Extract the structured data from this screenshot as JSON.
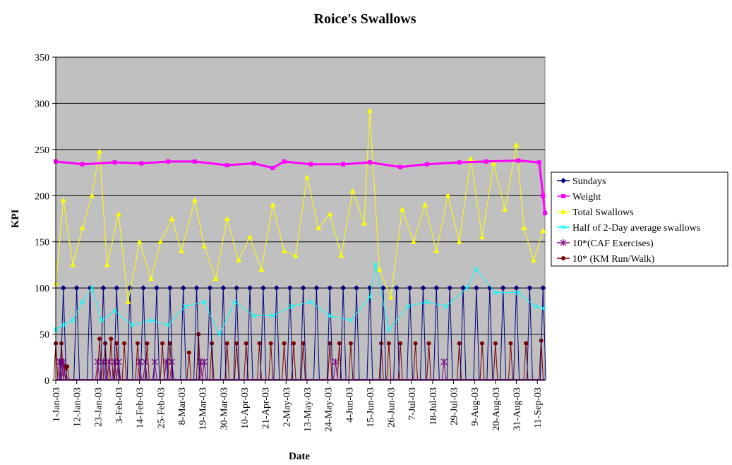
{
  "chart_data": {
    "type": "line",
    "title": "Roice's Swallows",
    "xlabel": "Date",
    "ylabel": "KPI",
    "ylim": [
      0,
      350
    ],
    "yticks": [
      0,
      50,
      100,
      150,
      200,
      250,
      300,
      350
    ],
    "x_start": "1-Jan-03",
    "x_end": "15-Sep-03",
    "xtick_labels": [
      "1-Jan-03",
      "12-Jan-03",
      "23-Jan-03",
      "3-Feb-03",
      "14-Feb-03",
      "25-Feb-03",
      "8-Mar-03",
      "19-Mar-03",
      "30-Mar-03",
      "10-Apr-03",
      "21-Apr-03",
      "2-May-03",
      "13-May-03",
      "24-May-03",
      "4-Jun-03",
      "15-Jun-03",
      "26-Jun-03",
      "7-Jul-03",
      "18-Jul-03",
      "29-Jul-03",
      "9-Aug-03",
      "20-Aug-03",
      "31-Aug-03",
      "11-Sep-03"
    ],
    "grid": "horizontal",
    "plot_background": "#c0c0c0",
    "legend_position": "right",
    "series": [
      {
        "name": "Sundays",
        "color": "#000080",
        "marker": "diamond",
        "note_values": "100 on each Sunday, 0 on other days",
        "x": [
          "5-Jan-03",
          "12-Jan-03",
          "19-Jan-03",
          "26-Jan-03",
          "2-Feb-03",
          "9-Feb-03",
          "16-Feb-03",
          "23-Feb-03",
          "2-Mar-03",
          "9-Mar-03",
          "16-Mar-03",
          "23-Mar-03",
          "30-Mar-03",
          "6-Apr-03",
          "13-Apr-03",
          "20-Apr-03",
          "27-Apr-03",
          "4-May-03",
          "11-May-03",
          "18-May-03",
          "25-May-03",
          "1-Jun-03",
          "8-Jun-03",
          "15-Jun-03",
          "22-Jun-03",
          "29-Jun-03",
          "6-Jul-03",
          "13-Jul-03",
          "20-Jul-03",
          "27-Jul-03",
          "3-Aug-03",
          "10-Aug-03",
          "17-Aug-03",
          "24-Aug-03",
          "31-Aug-03",
          "7-Sep-03",
          "14-Sep-03"
        ],
        "values": [
          100,
          100,
          100,
          100,
          100,
          100,
          100,
          100,
          100,
          100,
          100,
          100,
          100,
          100,
          100,
          100,
          100,
          100,
          100,
          100,
          100,
          100,
          100,
          100,
          100,
          100,
          100,
          100,
          100,
          100,
          100,
          100,
          100,
          100,
          100,
          100,
          100
        ]
      },
      {
        "name": "Weight",
        "color": "#ff00ff",
        "marker": "square",
        "x": [
          "1-Jan-03",
          "15-Jan-03",
          "1-Feb-03",
          "15-Feb-03",
          "1-Mar-03",
          "15-Mar-03",
          "1-Apr-03",
          "15-Apr-03",
          "25-Apr-03",
          "1-May-03",
          "15-May-03",
          "1-Jun-03",
          "15-Jun-03",
          "1-Jul-03",
          "15-Jul-03",
          "1-Aug-03",
          "15-Aug-03",
          "1-Sep-03",
          "12-Sep-03",
          "14-Sep-03",
          "15-Sep-03"
        ],
        "values": [
          237,
          234,
          236,
          235,
          237,
          237,
          233,
          235,
          230,
          237,
          234,
          234,
          236,
          231,
          234,
          236,
          237,
          238,
          236,
          200,
          181
        ]
      },
      {
        "name": "Total Swallows",
        "color": "#ffff00",
        "marker": "triangle",
        "x": [
          "1-Jan-03",
          "5-Jan-03",
          "10-Jan-03",
          "15-Jan-03",
          "20-Jan-03",
          "24-Jan-03",
          "28-Jan-03",
          "3-Feb-03",
          "8-Feb-03",
          "14-Feb-03",
          "20-Feb-03",
          "25-Feb-03",
          "3-Mar-03",
          "8-Mar-03",
          "15-Mar-03",
          "20-Mar-03",
          "26-Mar-03",
          "1-Apr-03",
          "7-Apr-03",
          "13-Apr-03",
          "19-Apr-03",
          "25-Apr-03",
          "1-May-03",
          "7-May-03",
          "13-May-03",
          "19-May-03",
          "25-May-03",
          "31-May-03",
          "6-Jun-03",
          "12-Jun-03",
          "15-Jun-03",
          "20-Jun-03",
          "26-Jun-03",
          "2-Jul-03",
          "8-Jul-03",
          "14-Jul-03",
          "20-Jul-03",
          "26-Jul-03",
          "1-Aug-03",
          "7-Aug-03",
          "13-Aug-03",
          "19-Aug-03",
          "25-Aug-03",
          "31-Aug-03",
          "4-Sep-03",
          "9-Sep-03",
          "14-Sep-03"
        ],
        "values": [
          105,
          195,
          125,
          165,
          200,
          248,
          125,
          180,
          85,
          150,
          110,
          150,
          175,
          140,
          195,
          145,
          110,
          175,
          130,
          155,
          120,
          190,
          140,
          135,
          220,
          165,
          180,
          135,
          205,
          170,
          292,
          120,
          90,
          185,
          150,
          190,
          140,
          200,
          150,
          240,
          155,
          235,
          185,
          255,
          165,
          130,
          162
        ]
      },
      {
        "name": "Half of 2-Day average swallows",
        "color": "#00ffff",
        "marker": "x",
        "x": [
          "1-Jan-03",
          "5-Jan-03",
          "10-Jan-03",
          "15-Jan-03",
          "20-Jan-03",
          "25-Jan-03",
          "1-Feb-03",
          "10-Feb-03",
          "20-Feb-03",
          "1-Mar-03",
          "10-Mar-03",
          "20-Mar-03",
          "28-Mar-03",
          "5-Apr-03",
          "15-Apr-03",
          "25-Apr-03",
          "5-May-03",
          "15-May-03",
          "25-May-03",
          "5-Jun-03",
          "15-Jun-03",
          "18-Jun-03",
          "25-Jun-03",
          "5-Jul-03",
          "15-Jul-03",
          "25-Jul-03",
          "5-Aug-03",
          "10-Aug-03",
          "20-Aug-03",
          "1-Sep-03",
          "10-Sep-03",
          "14-Sep-03"
        ],
        "values": [
          55,
          60,
          65,
          85,
          100,
          65,
          75,
          60,
          65,
          60,
          80,
          85,
          50,
          85,
          70,
          70,
          80,
          85,
          70,
          65,
          90,
          125,
          55,
          80,
          85,
          80,
          100,
          120,
          95,
          95,
          80,
          78
        ]
      },
      {
        "name": "10*(CAF Exercises)",
        "color": "#800080",
        "marker": "asterisk",
        "x": [
          "3-Jan-03",
          "4-Jan-03",
          "5-Jan-03",
          "23-Jan-03",
          "26-Jan-03",
          "29-Jan-03",
          "1-Feb-03",
          "3-Feb-03",
          "14-Feb-03",
          "17-Feb-03",
          "22-Feb-03",
          "28-Feb-03",
          "3-Mar-03",
          "18-Mar-03",
          "20-Mar-03",
          "28-May-03",
          "24-Jul-03"
        ],
        "values": [
          20,
          20,
          20,
          20,
          20,
          20,
          20,
          20,
          20,
          20,
          20,
          20,
          20,
          20,
          20,
          20,
          20
        ]
      },
      {
        "name": "10* (KM Run/Walk)",
        "color": "#800000",
        "marker": "circle",
        "x": [
          "1-Jan-03",
          "4-Jan-03",
          "6-Jan-03",
          "7-Jan-03",
          "24-Jan-03",
          "27-Jan-03",
          "30-Jan-03",
          "2-Feb-03",
          "6-Feb-03",
          "13-Feb-03",
          "18-Feb-03",
          "26-Feb-03",
          "2-Mar-03",
          "12-Mar-03",
          "17-Mar-03",
          "24-Mar-03",
          "1-Apr-03",
          "6-Apr-03",
          "11-Apr-03",
          "18-Apr-03",
          "24-Apr-03",
          "1-May-03",
          "6-May-03",
          "11-May-03",
          "25-May-03",
          "30-May-03",
          "5-Jun-03",
          "21-Jun-03",
          "25-Jun-03",
          "1-Jul-03",
          "9-Jul-03",
          "16-Jul-03",
          "1-Aug-03",
          "13-Aug-03",
          "20-Aug-03",
          "28-Aug-03",
          "5-Sep-03",
          "13-Sep-03"
        ],
        "values": [
          40,
          40,
          15,
          15,
          45,
          40,
          45,
          40,
          40,
          40,
          40,
          40,
          40,
          30,
          50,
          40,
          40,
          40,
          40,
          40,
          40,
          40,
          40,
          40,
          40,
          40,
          40,
          40,
          40,
          40,
          40,
          40,
          40,
          40,
          40,
          40,
          40,
          43
        ]
      }
    ]
  }
}
